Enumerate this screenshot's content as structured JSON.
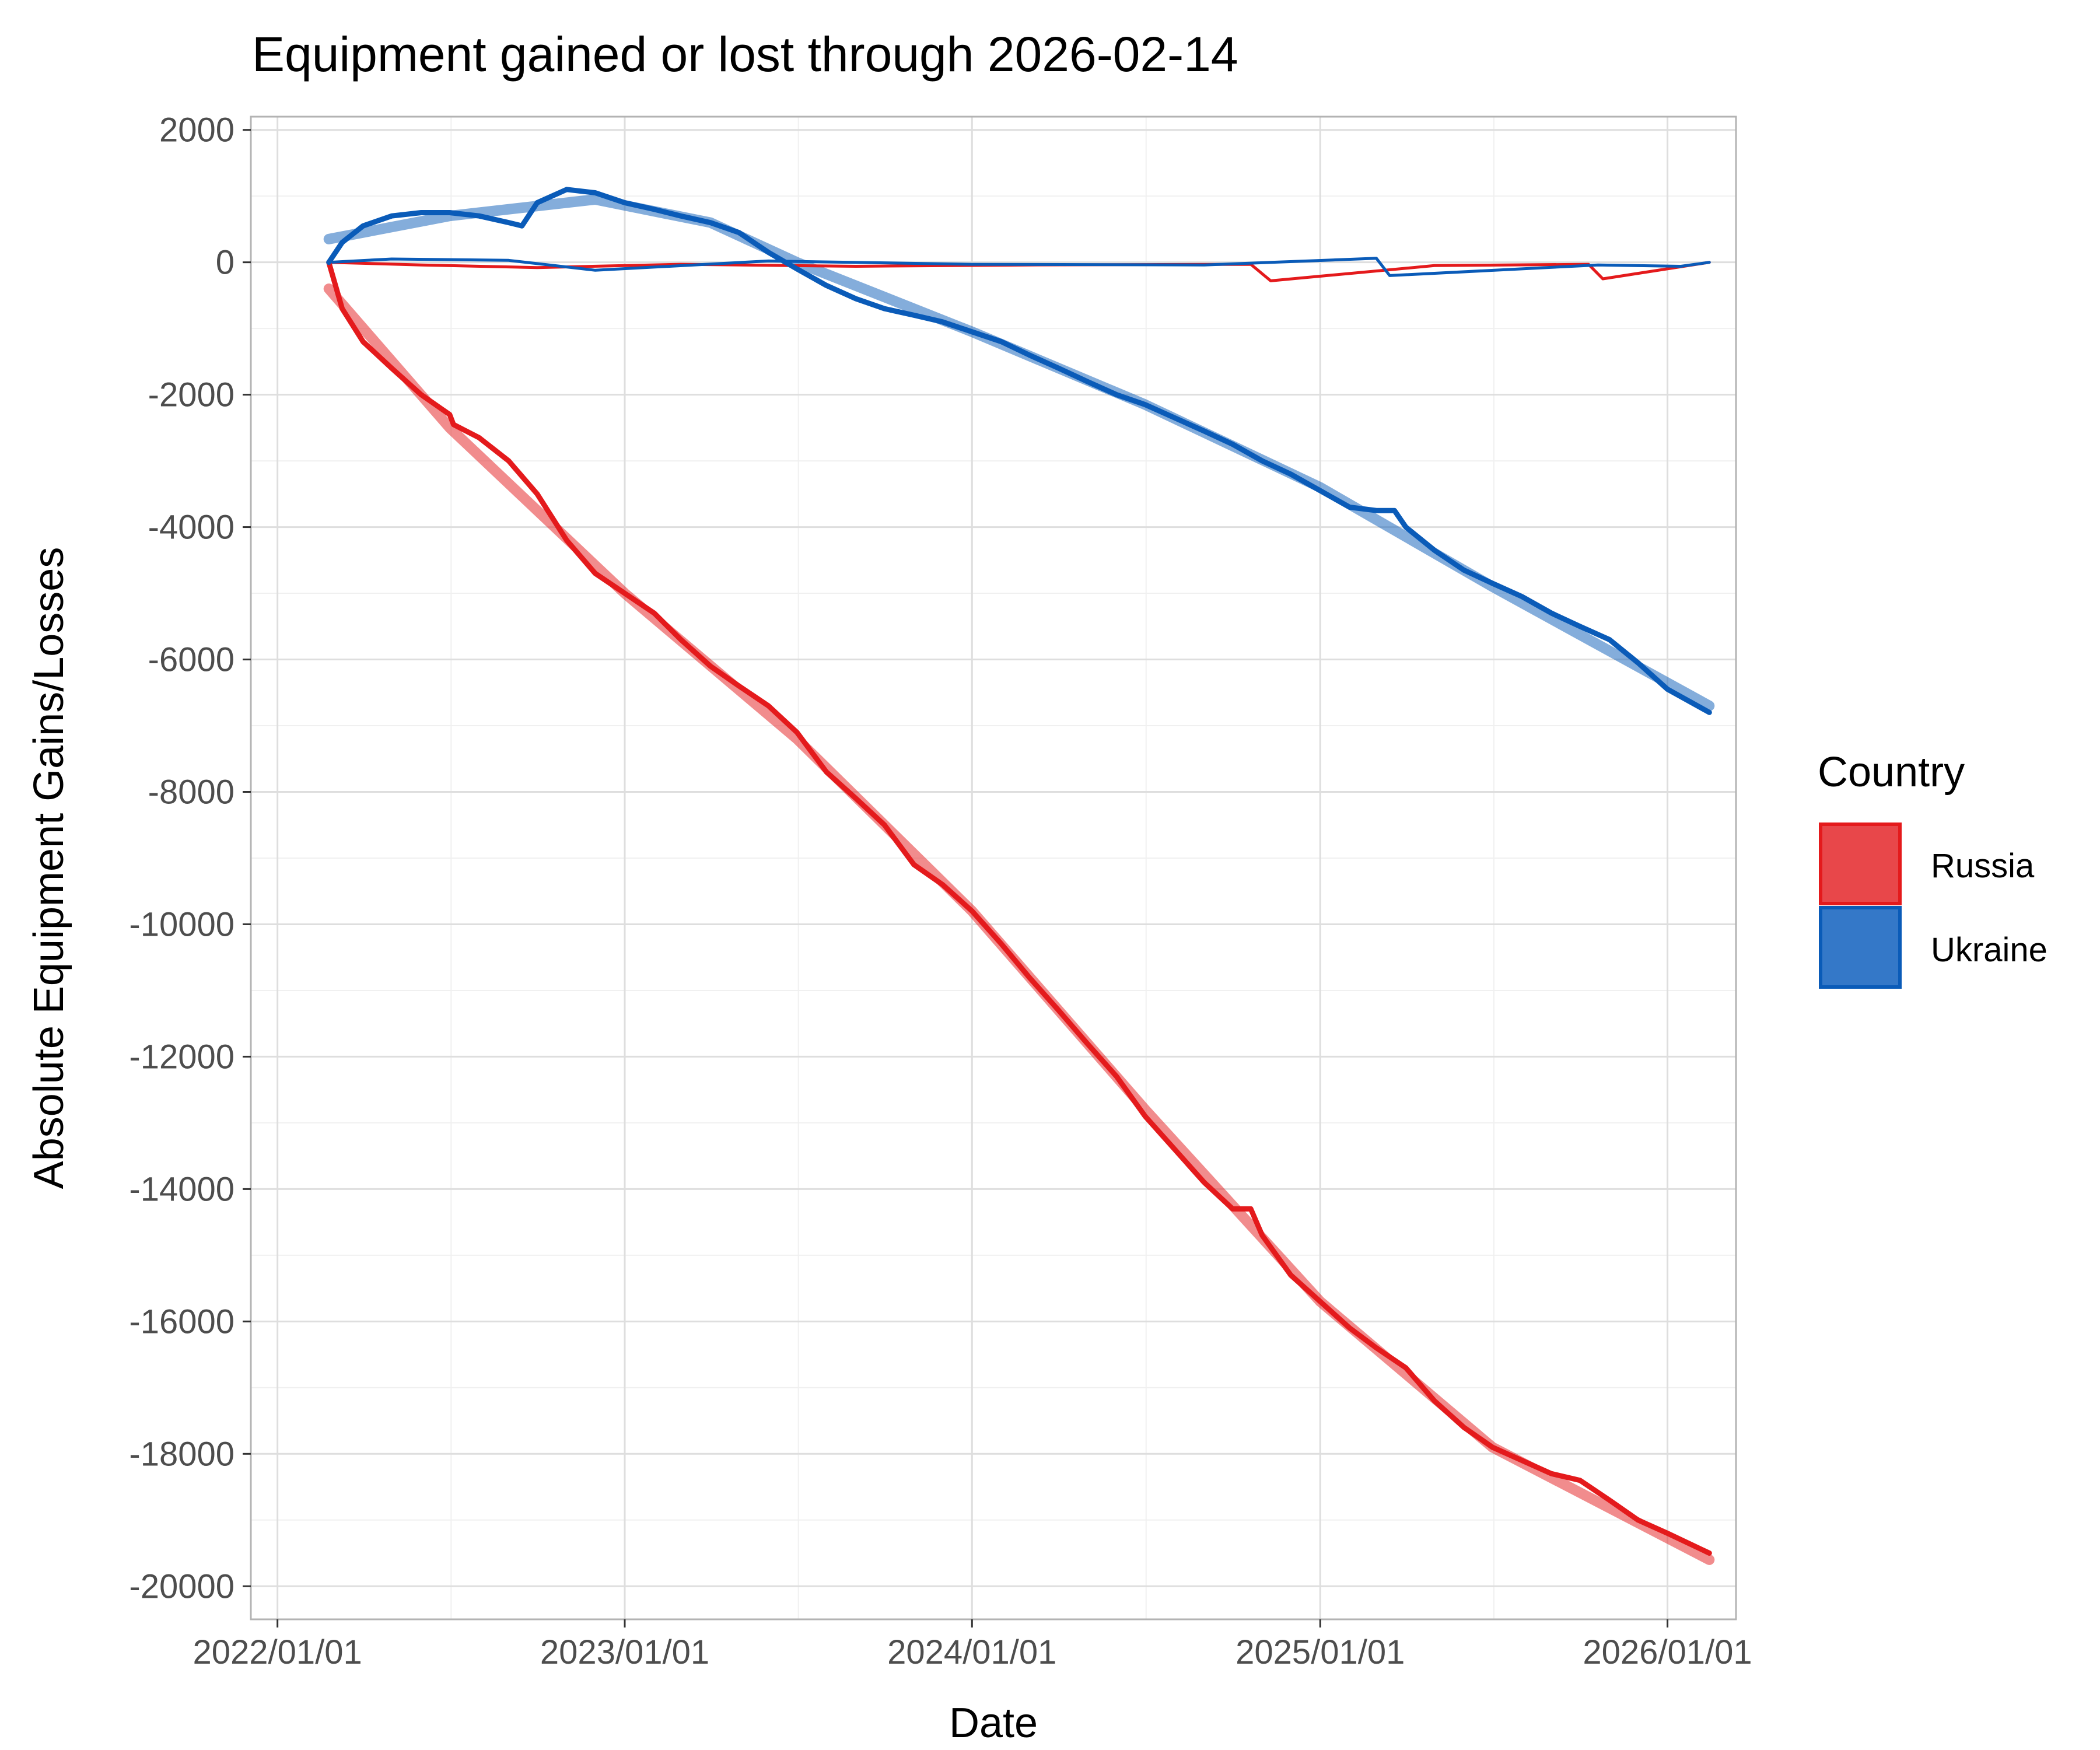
{
  "chart_data": {
    "type": "line",
    "title": "Equipment gained or lost through 2026-02-14",
    "xlabel": "Date",
    "ylabel": "Absolute Equipment Gains/Losses",
    "x_ticks": [
      "2022/01/01",
      "2023/01/01",
      "2024/01/01",
      "2025/01/01",
      "2026/01/01"
    ],
    "xlim": [
      "2021-12-04",
      "2026-03-14"
    ],
    "y_ticks": [
      2000,
      0,
      -2000,
      -4000,
      -6000,
      -8000,
      -10000,
      -12000,
      -14000,
      -16000,
      -18000,
      -20000
    ],
    "ylim": [
      -20500,
      2200
    ],
    "grid": true,
    "legend": {
      "title": "Country",
      "position": "right",
      "entries": [
        {
          "name": "Russia",
          "color": "#E41A1C"
        },
        {
          "name": "Ukraine",
          "color": "#0A5BB8"
        }
      ]
    },
    "series": [
      {
        "name": "Russia",
        "role": "cumulative",
        "color": "#E41A1C",
        "x": [
          "2022-02-24",
          "2022-03-10",
          "2022-04-01",
          "2022-05-01",
          "2022-06-01",
          "2022-07-01",
          "2022-07-05",
          "2022-08-01",
          "2022-09-01",
          "2022-10-01",
          "2022-11-01",
          "2022-12-01",
          "2023-01-01",
          "2023-02-01",
          "2023-03-01",
          "2023-04-01",
          "2023-05-01",
          "2023-06-01",
          "2023-07-01",
          "2023-08-01",
          "2023-09-01",
          "2023-10-01",
          "2023-11-01",
          "2023-12-01",
          "2024-01-01",
          "2024-02-01",
          "2024-03-01",
          "2024-04-01",
          "2024-05-01",
          "2024-06-01",
          "2024-07-01",
          "2024-08-01",
          "2024-09-01",
          "2024-10-01",
          "2024-10-20",
          "2024-11-01",
          "2024-12-01",
          "2025-01-01",
          "2025-02-01",
          "2025-03-01",
          "2025-04-01",
          "2025-05-01",
          "2025-06-01",
          "2025-07-01",
          "2025-08-01",
          "2025-09-01",
          "2025-10-01",
          "2025-11-01",
          "2025-12-01",
          "2026-01-01",
          "2026-02-14"
        ],
        "y": [
          0,
          -700,
          -1200,
          -1600,
          -2000,
          -2300,
          -2450,
          -2650,
          -3000,
          -3500,
          -4200,
          -4700,
          -5000,
          -5300,
          -5700,
          -6100,
          -6400,
          -6700,
          -7100,
          -7700,
          -8100,
          -8500,
          -9100,
          -9400,
          -9800,
          -10300,
          -10800,
          -11300,
          -11800,
          -12300,
          -12900,
          -13400,
          -13900,
          -14300,
          -14300,
          -14700,
          -15300,
          -15700,
          -16100,
          -16400,
          -16700,
          -17200,
          -17600,
          -17900,
          -18100,
          -18300,
          -18400,
          -18700,
          -19000,
          -19200,
          -19500
        ]
      },
      {
        "name": "Ukraine",
        "role": "cumulative",
        "color": "#0A5BB8",
        "x": [
          "2022-02-24",
          "2022-03-10",
          "2022-04-01",
          "2022-05-01",
          "2022-06-01",
          "2022-07-01",
          "2022-08-01",
          "2022-09-01",
          "2022-09-15",
          "2022-10-01",
          "2022-11-01",
          "2022-12-01",
          "2023-01-01",
          "2023-02-01",
          "2023-03-01",
          "2023-04-01",
          "2023-05-01",
          "2023-06-01",
          "2023-07-01",
          "2023-08-01",
          "2023-09-01",
          "2023-10-01",
          "2023-11-01",
          "2023-12-01",
          "2024-01-01",
          "2024-02-01",
          "2024-03-01",
          "2024-04-01",
          "2024-05-01",
          "2024-06-01",
          "2024-07-01",
          "2024-08-01",
          "2024-09-01",
          "2024-10-01",
          "2024-11-01",
          "2024-12-01",
          "2025-01-01",
          "2025-02-01",
          "2025-03-01",
          "2025-03-20",
          "2025-04-01",
          "2025-05-01",
          "2025-06-01",
          "2025-07-01",
          "2025-08-01",
          "2025-09-01",
          "2025-10-01",
          "2025-11-01",
          "2025-12-01",
          "2026-01-01",
          "2026-02-14"
        ],
        "y": [
          0,
          300,
          550,
          700,
          750,
          750,
          700,
          600,
          550,
          900,
          1100,
          1050,
          900,
          800,
          700,
          600,
          450,
          150,
          -100,
          -350,
          -550,
          -700,
          -800,
          -900,
          -1050,
          -1200,
          -1400,
          -1600,
          -1800,
          -2000,
          -2150,
          -2350,
          -2550,
          -2750,
          -3000,
          -3200,
          -3450,
          -3700,
          -3750,
          -3750,
          -4000,
          -4350,
          -4650,
          -4850,
          -5050,
          -5300,
          -5500,
          -5700,
          -6050,
          -6450,
          -6800
        ]
      },
      {
        "name": "Russia",
        "role": "trend",
        "color": "#E41A1C",
        "x": [
          "2022-02-24",
          "2022-07-01",
          "2023-01-01",
          "2023-07-01",
          "2024-01-01",
          "2024-07-01",
          "2025-01-01",
          "2025-07-01",
          "2026-02-14"
        ],
        "y": [
          -400,
          -2500,
          -5000,
          -7200,
          -9800,
          -12800,
          -15700,
          -17900,
          -19600
        ]
      },
      {
        "name": "Ukraine",
        "role": "trend",
        "color": "#0A5BB8",
        "x": [
          "2022-02-24",
          "2022-07-01",
          "2022-12-01",
          "2023-04-01",
          "2023-07-01",
          "2024-01-01",
          "2024-07-01",
          "2025-01-01",
          "2025-07-01",
          "2026-02-14"
        ],
        "y": [
          350,
          700,
          950,
          600,
          0,
          -1050,
          -2150,
          -3400,
          -4900,
          -6700
        ]
      },
      {
        "name": "Russia",
        "role": "daily",
        "color": "#E41A1C",
        "x": [
          "2022-02-24",
          "2022-06-01",
          "2022-10-01",
          "2023-03-01",
          "2023-09-01",
          "2024-03-01",
          "2024-10-20",
          "2024-11-10",
          "2025-05-01",
          "2025-10-10",
          "2025-10-25",
          "2026-02-14"
        ],
        "y": [
          0,
          -40,
          -80,
          -30,
          -60,
          -40,
          -30,
          -280,
          -50,
          -30,
          -250,
          0
        ]
      },
      {
        "name": "Ukraine",
        "role": "daily",
        "color": "#0A5BB8",
        "x": [
          "2022-02-24",
          "2022-05-01",
          "2022-09-01",
          "2022-12-01",
          "2023-06-01",
          "2024-01-01",
          "2024-09-01",
          "2025-03-01",
          "2025-03-15",
          "2025-10-20",
          "2026-01-15",
          "2026-02-14"
        ],
        "y": [
          0,
          50,
          30,
          -120,
          20,
          -30,
          -40,
          60,
          -200,
          -40,
          -60,
          0
        ]
      }
    ]
  }
}
